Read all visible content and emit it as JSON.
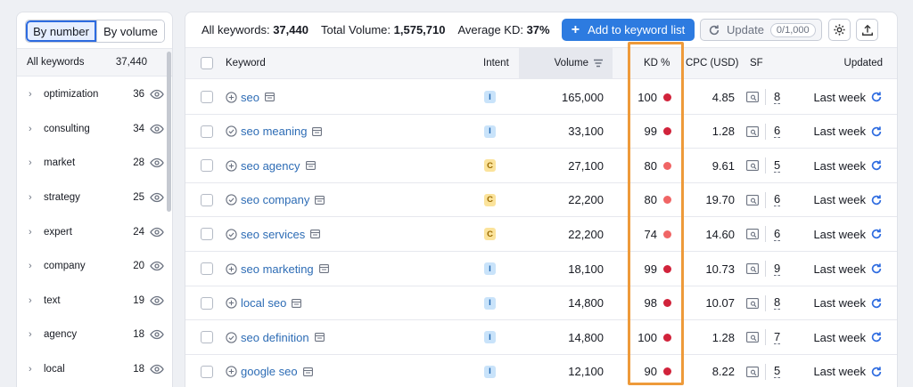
{
  "sidebar": {
    "toggle": {
      "by_number": "By number",
      "by_volume": "By volume"
    },
    "header": {
      "label": "All keywords",
      "count": "37,440"
    },
    "items": [
      {
        "label": "optimization",
        "count": "36"
      },
      {
        "label": "consulting",
        "count": "34"
      },
      {
        "label": "market",
        "count": "28"
      },
      {
        "label": "strategy",
        "count": "25"
      },
      {
        "label": "expert",
        "count": "24"
      },
      {
        "label": "company",
        "count": "20"
      },
      {
        "label": "text",
        "count": "19"
      },
      {
        "label": "agency",
        "count": "18"
      },
      {
        "label": "local",
        "count": "18"
      }
    ]
  },
  "summary": {
    "all_keywords_label": "All keywords:",
    "all_keywords_value": "37,440",
    "total_volume_label": "Total Volume:",
    "total_volume_value": "1,575,710",
    "avg_kd_label": "Average KD:",
    "avg_kd_value": "37%"
  },
  "toolbar": {
    "add_label": "Add to keyword list",
    "update_label": "Update",
    "update_count": "0/1,000"
  },
  "table": {
    "headers": {
      "keyword": "Keyword",
      "intent": "Intent",
      "volume": "Volume",
      "kd": "KD %",
      "cpc": "CPC (USD)",
      "sf": "SF",
      "updated": "Updated"
    },
    "rows": [
      {
        "keyword": "seo",
        "icon": "plus-circle-icon",
        "intent": "I",
        "volume": "165,000",
        "kd": "100",
        "kd_color": "#d1233b",
        "cpc": "4.85",
        "sf": "8",
        "updated": "Last week"
      },
      {
        "keyword": "seo meaning",
        "icon": "check-circle-icon",
        "intent": "I",
        "volume": "33,100",
        "kd": "99",
        "kd_color": "#d1233b",
        "cpc": "1.28",
        "sf": "6",
        "updated": "Last week"
      },
      {
        "keyword": "seo agency",
        "icon": "plus-circle-icon",
        "intent": "C",
        "volume": "27,100",
        "kd": "80",
        "kd_color": "#f06565",
        "cpc": "9.61",
        "sf": "5",
        "updated": "Last week"
      },
      {
        "keyword": "seo company",
        "icon": "check-circle-icon",
        "intent": "C",
        "volume": "22,200",
        "kd": "80",
        "kd_color": "#f06565",
        "cpc": "19.70",
        "sf": "6",
        "updated": "Last week"
      },
      {
        "keyword": "seo services",
        "icon": "check-circle-icon",
        "intent": "C",
        "volume": "22,200",
        "kd": "74",
        "kd_color": "#f06565",
        "cpc": "14.60",
        "sf": "6",
        "updated": "Last week"
      },
      {
        "keyword": "seo marketing",
        "icon": "plus-circle-icon",
        "intent": "I",
        "volume": "18,100",
        "kd": "99",
        "kd_color": "#d1233b",
        "cpc": "10.73",
        "sf": "9",
        "updated": "Last week"
      },
      {
        "keyword": "local seo",
        "icon": "plus-circle-icon",
        "intent": "I",
        "volume": "14,800",
        "kd": "98",
        "kd_color": "#d1233b",
        "cpc": "10.07",
        "sf": "8",
        "updated": "Last week"
      },
      {
        "keyword": "seo definition",
        "icon": "check-circle-icon",
        "intent": "I",
        "volume": "14,800",
        "kd": "100",
        "kd_color": "#d1233b",
        "cpc": "1.28",
        "sf": "7",
        "updated": "Last week"
      },
      {
        "keyword": "google seo",
        "icon": "plus-circle-icon",
        "intent": "I",
        "volume": "12,100",
        "kd": "90",
        "kd_color": "#d1233b",
        "cpc": "8.22",
        "sf": "5",
        "updated": "Last week"
      }
    ]
  },
  "colors": {
    "accent": "#2d7be0",
    "highlight": "#ee9a3a",
    "link": "#2d6cb5"
  }
}
